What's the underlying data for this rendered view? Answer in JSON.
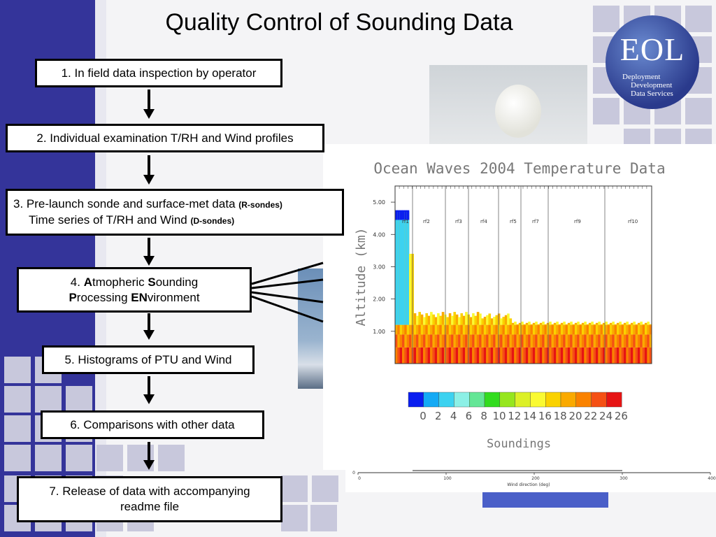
{
  "slide": {
    "title": "Quality Control of Sounding Data",
    "steps": [
      {
        "text": "1. In field data inspection by operator"
      },
      {
        "text": "2. Individual examination T/RH and Wind profiles"
      },
      {
        "line1": "3.  Pre-launch sonde and surface-met data ",
        "line1_small": "(R-sondes)",
        "line2": "Time series of T/RH and Wind ",
        "line2_small": "(D-sondes)"
      },
      {
        "p1": "4. ",
        "b1": "A",
        "p2": "tmopheric ",
        "b2": "S",
        "p3": "ounding",
        "b3": "P",
        "p4": "rocessing ",
        "b4": "EN",
        "p5": "vironment"
      },
      {
        "text": "5. Histograms of PTU and Wind"
      },
      {
        "text": "6. Comparisons with other data"
      },
      {
        "line1": "7. Release of data with accompanying",
        "line2": "readme file"
      }
    ]
  },
  "logo": {
    "text": "EOL",
    "line1": "Deployment",
    "line2": "Development",
    "line3": "Data Services"
  },
  "colors": {
    "sidebar": "#34349a",
    "accent_squares": "#c8c8dc"
  },
  "chart_data": {
    "type": "heatmap",
    "title": "Ocean Waves 2004 Temperature Data",
    "xlabel": "Soundings",
    "ylabel": "Altitude (km)",
    "y_ticks": [
      "1.00",
      "2.00",
      "3.00",
      "4.00",
      "5.00"
    ],
    "ylim": [
      0,
      5.5
    ],
    "flights": [
      "rf1",
      "rf2",
      "rf3",
      "rf4",
      "rf5",
      "rf7",
      "rf9",
      "rf10"
    ],
    "colorbar": {
      "labels": [
        "0",
        "2",
        "4",
        "6",
        "8",
        "10",
        "12",
        "14",
        "16",
        "18",
        "20",
        "22",
        "24",
        "26"
      ],
      "colors": [
        "#0a1ef0",
        "#14aaf5",
        "#3cd2f0",
        "#8cf0e6",
        "#64e696",
        "#32dc1e",
        "#96e61e",
        "#dcf028",
        "#fafa32",
        "#fad200",
        "#faaa00",
        "#fa8200",
        "#f55014",
        "#e61414"
      ]
    }
  },
  "bottom_chart": {
    "x_ticks": [
      "0",
      "100",
      "200",
      "300",
      "400"
    ],
    "xlabel": "Wind direction (deg)",
    "y_tick": "0"
  }
}
